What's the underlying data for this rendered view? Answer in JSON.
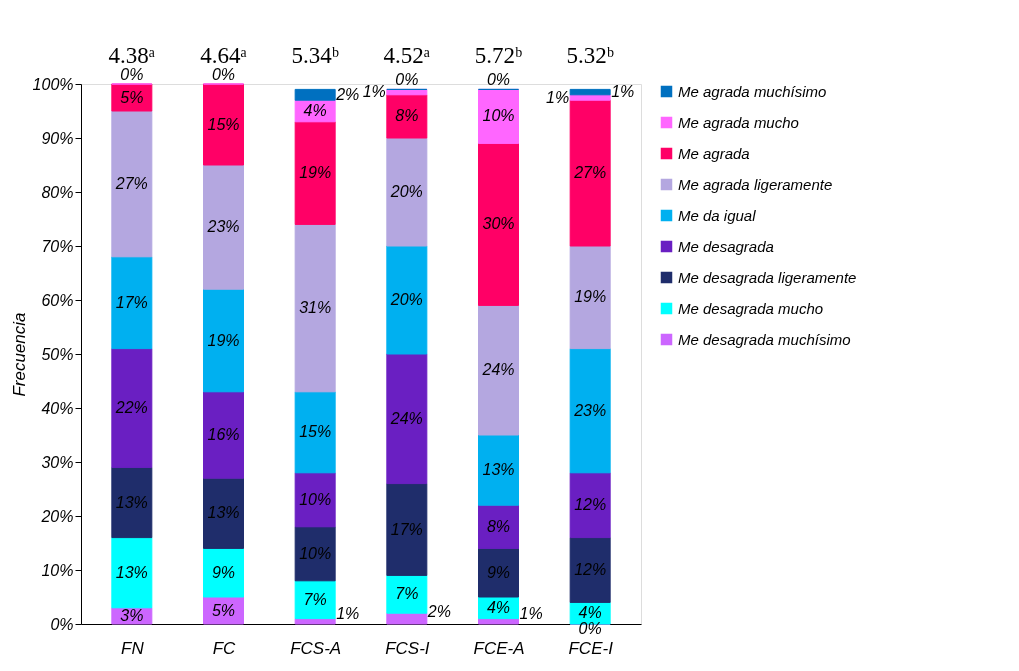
{
  "chart_data": {
    "type": "bar",
    "stacked": true,
    "ylabel": "Frecuencia",
    "categories": [
      "FN",
      "FC",
      "FCS-A",
      "FCS-I",
      "FCE-A",
      "FCE-I"
    ],
    "series": [
      {
        "name": "Me desagrada muchísimo",
        "color": "#cc66ff",
        "values": [
          3,
          5,
          1,
          2,
          1,
          0
        ],
        "value_labels": [
          "3%",
          "5%",
          "1%",
          "2%",
          "1%",
          "0%"
        ]
      },
      {
        "name": "Me desagrada mucho",
        "color": "#00ffff",
        "values": [
          13,
          9,
          7,
          7,
          4,
          4
        ],
        "value_labels": [
          "13%",
          "9%",
          "7%",
          "7%",
          "4%",
          "4%"
        ]
      },
      {
        "name": "Me desagrada ligeramente",
        "color": "#1f2d6b",
        "values": [
          13,
          13,
          10,
          17,
          9,
          12
        ],
        "value_labels": [
          "13%",
          "13%",
          "10%",
          "17%",
          "9%",
          "12%"
        ]
      },
      {
        "name": "Me desagrada",
        "color": "#6a1fc2",
        "values": [
          22,
          16,
          10,
          24,
          8,
          12
        ],
        "value_labels": [
          "22%",
          "16%",
          "10%",
          "24%",
          "8%",
          "12%"
        ]
      },
      {
        "name": "Me da igual",
        "color": "#00b0f0",
        "values": [
          17,
          19,
          15,
          20,
          13,
          23
        ],
        "value_labels": [
          "17%",
          "19%",
          "15%",
          "20%",
          "13%",
          "23%"
        ]
      },
      {
        "name": "Me agrada ligeramente",
        "color": "#b4a7e0",
        "values": [
          27,
          23,
          31,
          20,
          24,
          19
        ],
        "value_labels": [
          "27%",
          "23%",
          "31%",
          "20%",
          "24%",
          "19%"
        ]
      },
      {
        "name": "Me agrada",
        "color": "#ff0066",
        "values": [
          5,
          15,
          19,
          8,
          30,
          27
        ],
        "value_labels": [
          "5%",
          "15%",
          "19%",
          "8%",
          "30%",
          "27%"
        ]
      },
      {
        "name": "Me agrada mucho",
        "color": "#ff66ff",
        "values": [
          0,
          0,
          4,
          1,
          10,
          1
        ],
        "value_labels": [
          "0%",
          "0%",
          "4%",
          "1%",
          "10%",
          "1%"
        ]
      },
      {
        "name": "Me agrada muchísimo",
        "color": "#0070c0",
        "values": [
          null,
          null,
          2,
          0,
          0,
          1
        ],
        "value_labels": [
          null,
          null,
          "2%",
          "0%",
          "0%",
          "1%"
        ]
      }
    ],
    "ylim": [
      0,
      100
    ],
    "yticks": [
      {
        "value": 0,
        "label": "0%"
      },
      {
        "value": 10,
        "label": "10%"
      },
      {
        "value": 20,
        "label": "20%"
      },
      {
        "value": 30,
        "label": "30%"
      },
      {
        "value": 40,
        "label": "40%"
      },
      {
        "value": 50,
        "label": "50%"
      },
      {
        "value": 60,
        "label": "60%"
      },
      {
        "value": 70,
        "label": "70%"
      },
      {
        "value": 80,
        "label": "80%"
      },
      {
        "value": 90,
        "label": "90%"
      },
      {
        "value": 100,
        "label": "100%"
      }
    ],
    "annotations": [
      "4.38ᵃ",
      "4.64ᵃ",
      "5.34ᵇ",
      "4.52ᵃ",
      "5.72ᵇ",
      "5.32ᵇ"
    ],
    "legend": "right",
    "grid": false
  }
}
